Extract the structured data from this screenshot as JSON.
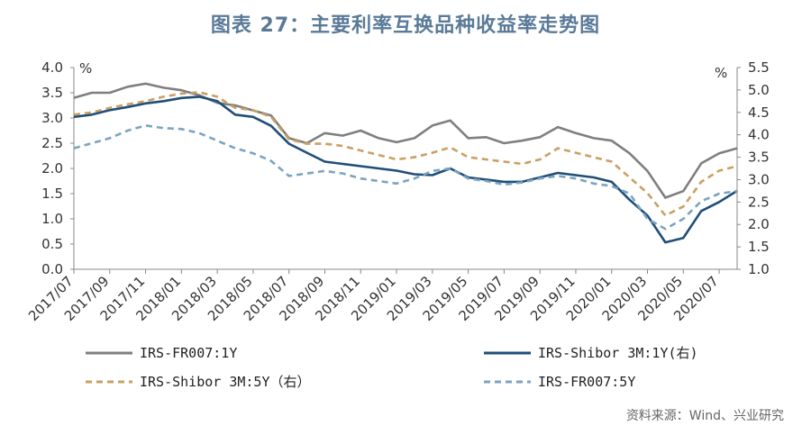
{
  "title": "图表 27：主要利率互换品种收益率走势图",
  "source": "资料来源：Wind、兴业研究",
  "chart_data": {
    "type": "line",
    "left_axis": {
      "unit": "%",
      "ticks": [
        "4.0",
        "3.5",
        "3.0",
        "2.5",
        "2.0",
        "1.5",
        "1.0",
        "0.5",
        "0.0"
      ],
      "ylim": [
        0,
        4
      ]
    },
    "right_axis": {
      "unit": "%",
      "ticks": [
        "5.5",
        "5.0",
        "4.5",
        "4.0",
        "3.5",
        "3.0",
        "2.5",
        "2.0",
        "1.5",
        "1.0"
      ],
      "ylim": [
        1,
        5.5
      ]
    },
    "x_ticks": [
      "2017/07",
      "2017/09",
      "2017/11",
      "2018/01",
      "2018/03",
      "2018/05",
      "2018/07",
      "2018/09",
      "2018/11",
      "2019/01",
      "2019/03",
      "2019/05",
      "2019/07",
      "2019/09",
      "2019/11",
      "2020/01",
      "2020/03",
      "2020/05",
      "2020/07"
    ],
    "x_range": [
      "2017/07",
      "2020/08"
    ],
    "legend": [
      "IRS-FR007:1Y",
      "IRS-Shibor 3M:1Y(右)",
      "IRS-Shibor 3M:5Y（右）",
      "IRS-FR007:5Y"
    ],
    "series": [
      {
        "name": "IRS-FR007:1Y",
        "axis": "left",
        "color": "#7f7f7f",
        "dash": "solid",
        "points": [
          [
            "2017/07",
            3.4
          ],
          [
            "2017/08",
            3.5
          ],
          [
            "2017/09",
            3.5
          ],
          [
            "2017/10",
            3.62
          ],
          [
            "2017/11",
            3.68
          ],
          [
            "2017/12",
            3.6
          ],
          [
            "2018/01",
            3.55
          ],
          [
            "2018/02",
            3.45
          ],
          [
            "2018/03",
            3.3
          ],
          [
            "2018/04",
            3.25
          ],
          [
            "2018/05",
            3.15
          ],
          [
            "2018/06",
            3.05
          ],
          [
            "2018/07",
            2.6
          ],
          [
            "2018/08",
            2.5
          ],
          [
            "2018/09",
            2.7
          ],
          [
            "2018/10",
            2.65
          ],
          [
            "2018/11",
            2.75
          ],
          [
            "2018/12",
            2.6
          ],
          [
            "2019/01",
            2.52
          ],
          [
            "2019/02",
            2.6
          ],
          [
            "2019/03",
            2.85
          ],
          [
            "2019/04",
            2.95
          ],
          [
            "2019/05",
            2.6
          ],
          [
            "2019/06",
            2.62
          ],
          [
            "2019/07",
            2.5
          ],
          [
            "2019/08",
            2.55
          ],
          [
            "2019/09",
            2.62
          ],
          [
            "2019/10",
            2.82
          ],
          [
            "2019/11",
            2.7
          ],
          [
            "2019/12",
            2.6
          ],
          [
            "2020/01",
            2.55
          ],
          [
            "2020/02",
            2.3
          ],
          [
            "2020/03",
            1.95
          ],
          [
            "2020/04",
            1.42
          ],
          [
            "2020/05",
            1.55
          ],
          [
            "2020/06",
            2.1
          ],
          [
            "2020/07",
            2.3
          ],
          [
            "2020/08",
            2.4
          ]
        ]
      },
      {
        "name": "IRS-Shibor 3M:1Y(右)",
        "axis": "right",
        "color": "#1f4e79",
        "dash": "solid",
        "points": [
          [
            "2017/07",
            4.4
          ],
          [
            "2017/08",
            4.45
          ],
          [
            "2017/09",
            4.55
          ],
          [
            "2017/10",
            4.62
          ],
          [
            "2017/11",
            4.7
          ],
          [
            "2017/12",
            4.75
          ],
          [
            "2018/01",
            4.82
          ],
          [
            "2018/02",
            4.85
          ],
          [
            "2018/03",
            4.75
          ],
          [
            "2018/04",
            4.45
          ],
          [
            "2018/05",
            4.4
          ],
          [
            "2018/06",
            4.2
          ],
          [
            "2018/07",
            3.8
          ],
          [
            "2018/08",
            3.6
          ],
          [
            "2018/09",
            3.4
          ],
          [
            "2018/10",
            3.35
          ],
          [
            "2018/11",
            3.3
          ],
          [
            "2018/12",
            3.25
          ],
          [
            "2019/01",
            3.2
          ],
          [
            "2019/02",
            3.12
          ],
          [
            "2019/03",
            3.1
          ],
          [
            "2019/04",
            3.25
          ],
          [
            "2019/05",
            3.05
          ],
          [
            "2019/06",
            3.0
          ],
          [
            "2019/07",
            2.95
          ],
          [
            "2019/08",
            2.95
          ],
          [
            "2019/09",
            3.05
          ],
          [
            "2019/10",
            3.15
          ],
          [
            "2019/11",
            3.1
          ],
          [
            "2019/12",
            3.05
          ],
          [
            "2020/01",
            2.95
          ],
          [
            "2020/02",
            2.55
          ],
          [
            "2020/03",
            2.2
          ],
          [
            "2020/04",
            1.6
          ],
          [
            "2020/05",
            1.7
          ],
          [
            "2020/06",
            2.3
          ],
          [
            "2020/07",
            2.5
          ],
          [
            "2020/08",
            2.75
          ]
        ]
      },
      {
        "name": "IRS-Shibor 3M:5Y（右）",
        "axis": "right",
        "color": "#c9a063",
        "dash": "dashed",
        "points": [
          [
            "2017/07",
            4.45
          ],
          [
            "2017/08",
            4.5
          ],
          [
            "2017/09",
            4.6
          ],
          [
            "2017/10",
            4.68
          ],
          [
            "2017/11",
            4.75
          ],
          [
            "2017/12",
            4.85
          ],
          [
            "2018/01",
            4.92
          ],
          [
            "2018/02",
            4.95
          ],
          [
            "2018/03",
            4.85
          ],
          [
            "2018/04",
            4.6
          ],
          [
            "2018/05",
            4.55
          ],
          [
            "2018/06",
            4.4
          ],
          [
            "2018/07",
            3.9
          ],
          [
            "2018/08",
            3.8
          ],
          [
            "2018/09",
            3.8
          ],
          [
            "2018/10",
            3.75
          ],
          [
            "2018/11",
            3.65
          ],
          [
            "2018/12",
            3.55
          ],
          [
            "2019/01",
            3.45
          ],
          [
            "2019/02",
            3.5
          ],
          [
            "2019/03",
            3.6
          ],
          [
            "2019/04",
            3.72
          ],
          [
            "2019/05",
            3.5
          ],
          [
            "2019/06",
            3.45
          ],
          [
            "2019/07",
            3.4
          ],
          [
            "2019/08",
            3.35
          ],
          [
            "2019/09",
            3.45
          ],
          [
            "2019/10",
            3.7
          ],
          [
            "2019/11",
            3.6
          ],
          [
            "2019/12",
            3.5
          ],
          [
            "2020/01",
            3.4
          ],
          [
            "2020/02",
            3.05
          ],
          [
            "2020/03",
            2.7
          ],
          [
            "2020/04",
            2.2
          ],
          [
            "2020/05",
            2.4
          ],
          [
            "2020/06",
            2.95
          ],
          [
            "2020/07",
            3.2
          ],
          [
            "2020/08",
            3.3
          ]
        ]
      },
      {
        "name": "IRS-FR007:5Y",
        "axis": "left",
        "color": "#7ba4c0",
        "dash": "dashed",
        "points": [
          [
            "2017/07",
            2.4
          ],
          [
            "2017/08",
            2.5
          ],
          [
            "2017/09",
            2.6
          ],
          [
            "2017/10",
            2.75
          ],
          [
            "2017/11",
            2.85
          ],
          [
            "2017/12",
            2.8
          ],
          [
            "2018/01",
            2.78
          ],
          [
            "2018/02",
            2.7
          ],
          [
            "2018/03",
            2.55
          ],
          [
            "2018/04",
            2.4
          ],
          [
            "2018/05",
            2.3
          ],
          [
            "2018/06",
            2.15
          ],
          [
            "2018/07",
            1.85
          ],
          [
            "2018/08",
            1.9
          ],
          [
            "2018/09",
            1.95
          ],
          [
            "2018/10",
            1.9
          ],
          [
            "2018/11",
            1.8
          ],
          [
            "2018/12",
            1.75
          ],
          [
            "2019/01",
            1.7
          ],
          [
            "2019/02",
            1.8
          ],
          [
            "2019/03",
            1.95
          ],
          [
            "2019/04",
            2.0
          ],
          [
            "2019/05",
            1.8
          ],
          [
            "2019/06",
            1.75
          ],
          [
            "2019/07",
            1.68
          ],
          [
            "2019/08",
            1.72
          ],
          [
            "2019/09",
            1.8
          ],
          [
            "2019/10",
            1.85
          ],
          [
            "2019/11",
            1.8
          ],
          [
            "2019/12",
            1.7
          ],
          [
            "2020/01",
            1.65
          ],
          [
            "2020/02",
            1.5
          ],
          [
            "2020/03",
            1.0
          ],
          [
            "2020/04",
            0.8
          ],
          [
            "2020/05",
            1.0
          ],
          [
            "2020/06",
            1.35
          ],
          [
            "2020/07",
            1.5
          ],
          [
            "2020/08",
            1.55
          ]
        ]
      }
    ]
  }
}
